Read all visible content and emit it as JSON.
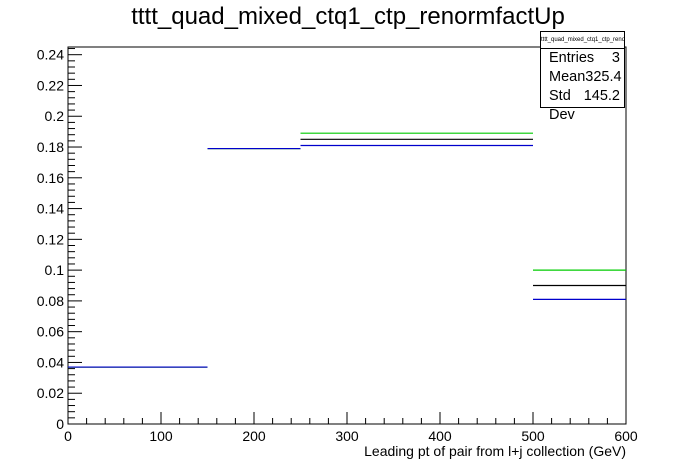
{
  "chart_data": {
    "type": "histogram",
    "title": "tttt_quad_mixed_ctq1_ctp_renormfactUp",
    "xlabel": "Leading pt of pair from l+j collection (GeV)",
    "ylabel": "",
    "xlim": [
      0,
      600
    ],
    "ylim": [
      0,
      0.245
    ],
    "x_ticks": [
      0,
      100,
      200,
      300,
      400,
      500,
      600
    ],
    "y_ticks": [
      0,
      0.02,
      0.04,
      0.06,
      0.08,
      0.1,
      0.12,
      0.14,
      0.16,
      0.18,
      0.2,
      0.22,
      0.24
    ],
    "bin_edges": [
      0,
      150,
      250,
      500,
      600
    ],
    "series": [
      {
        "color": "#000000",
        "values": [
          0.037,
          0.179,
          0.185,
          0.09
        ]
      },
      {
        "color": "#00cc00",
        "values": [
          0.037,
          0.179,
          0.189,
          0.1
        ]
      },
      {
        "color": "#0000cc",
        "values": [
          0.037,
          0.179,
          0.181,
          0.081
        ]
      }
    ],
    "stats": {
      "title": "tttt_quad_mixed_ctq1_ctp_renormfactUp",
      "rows": [
        {
          "label": "Entries",
          "value": "3"
        },
        {
          "label": "Mean",
          "value": "325.4"
        },
        {
          "label": "Std Dev",
          "value": "145.2"
        }
      ]
    }
  }
}
